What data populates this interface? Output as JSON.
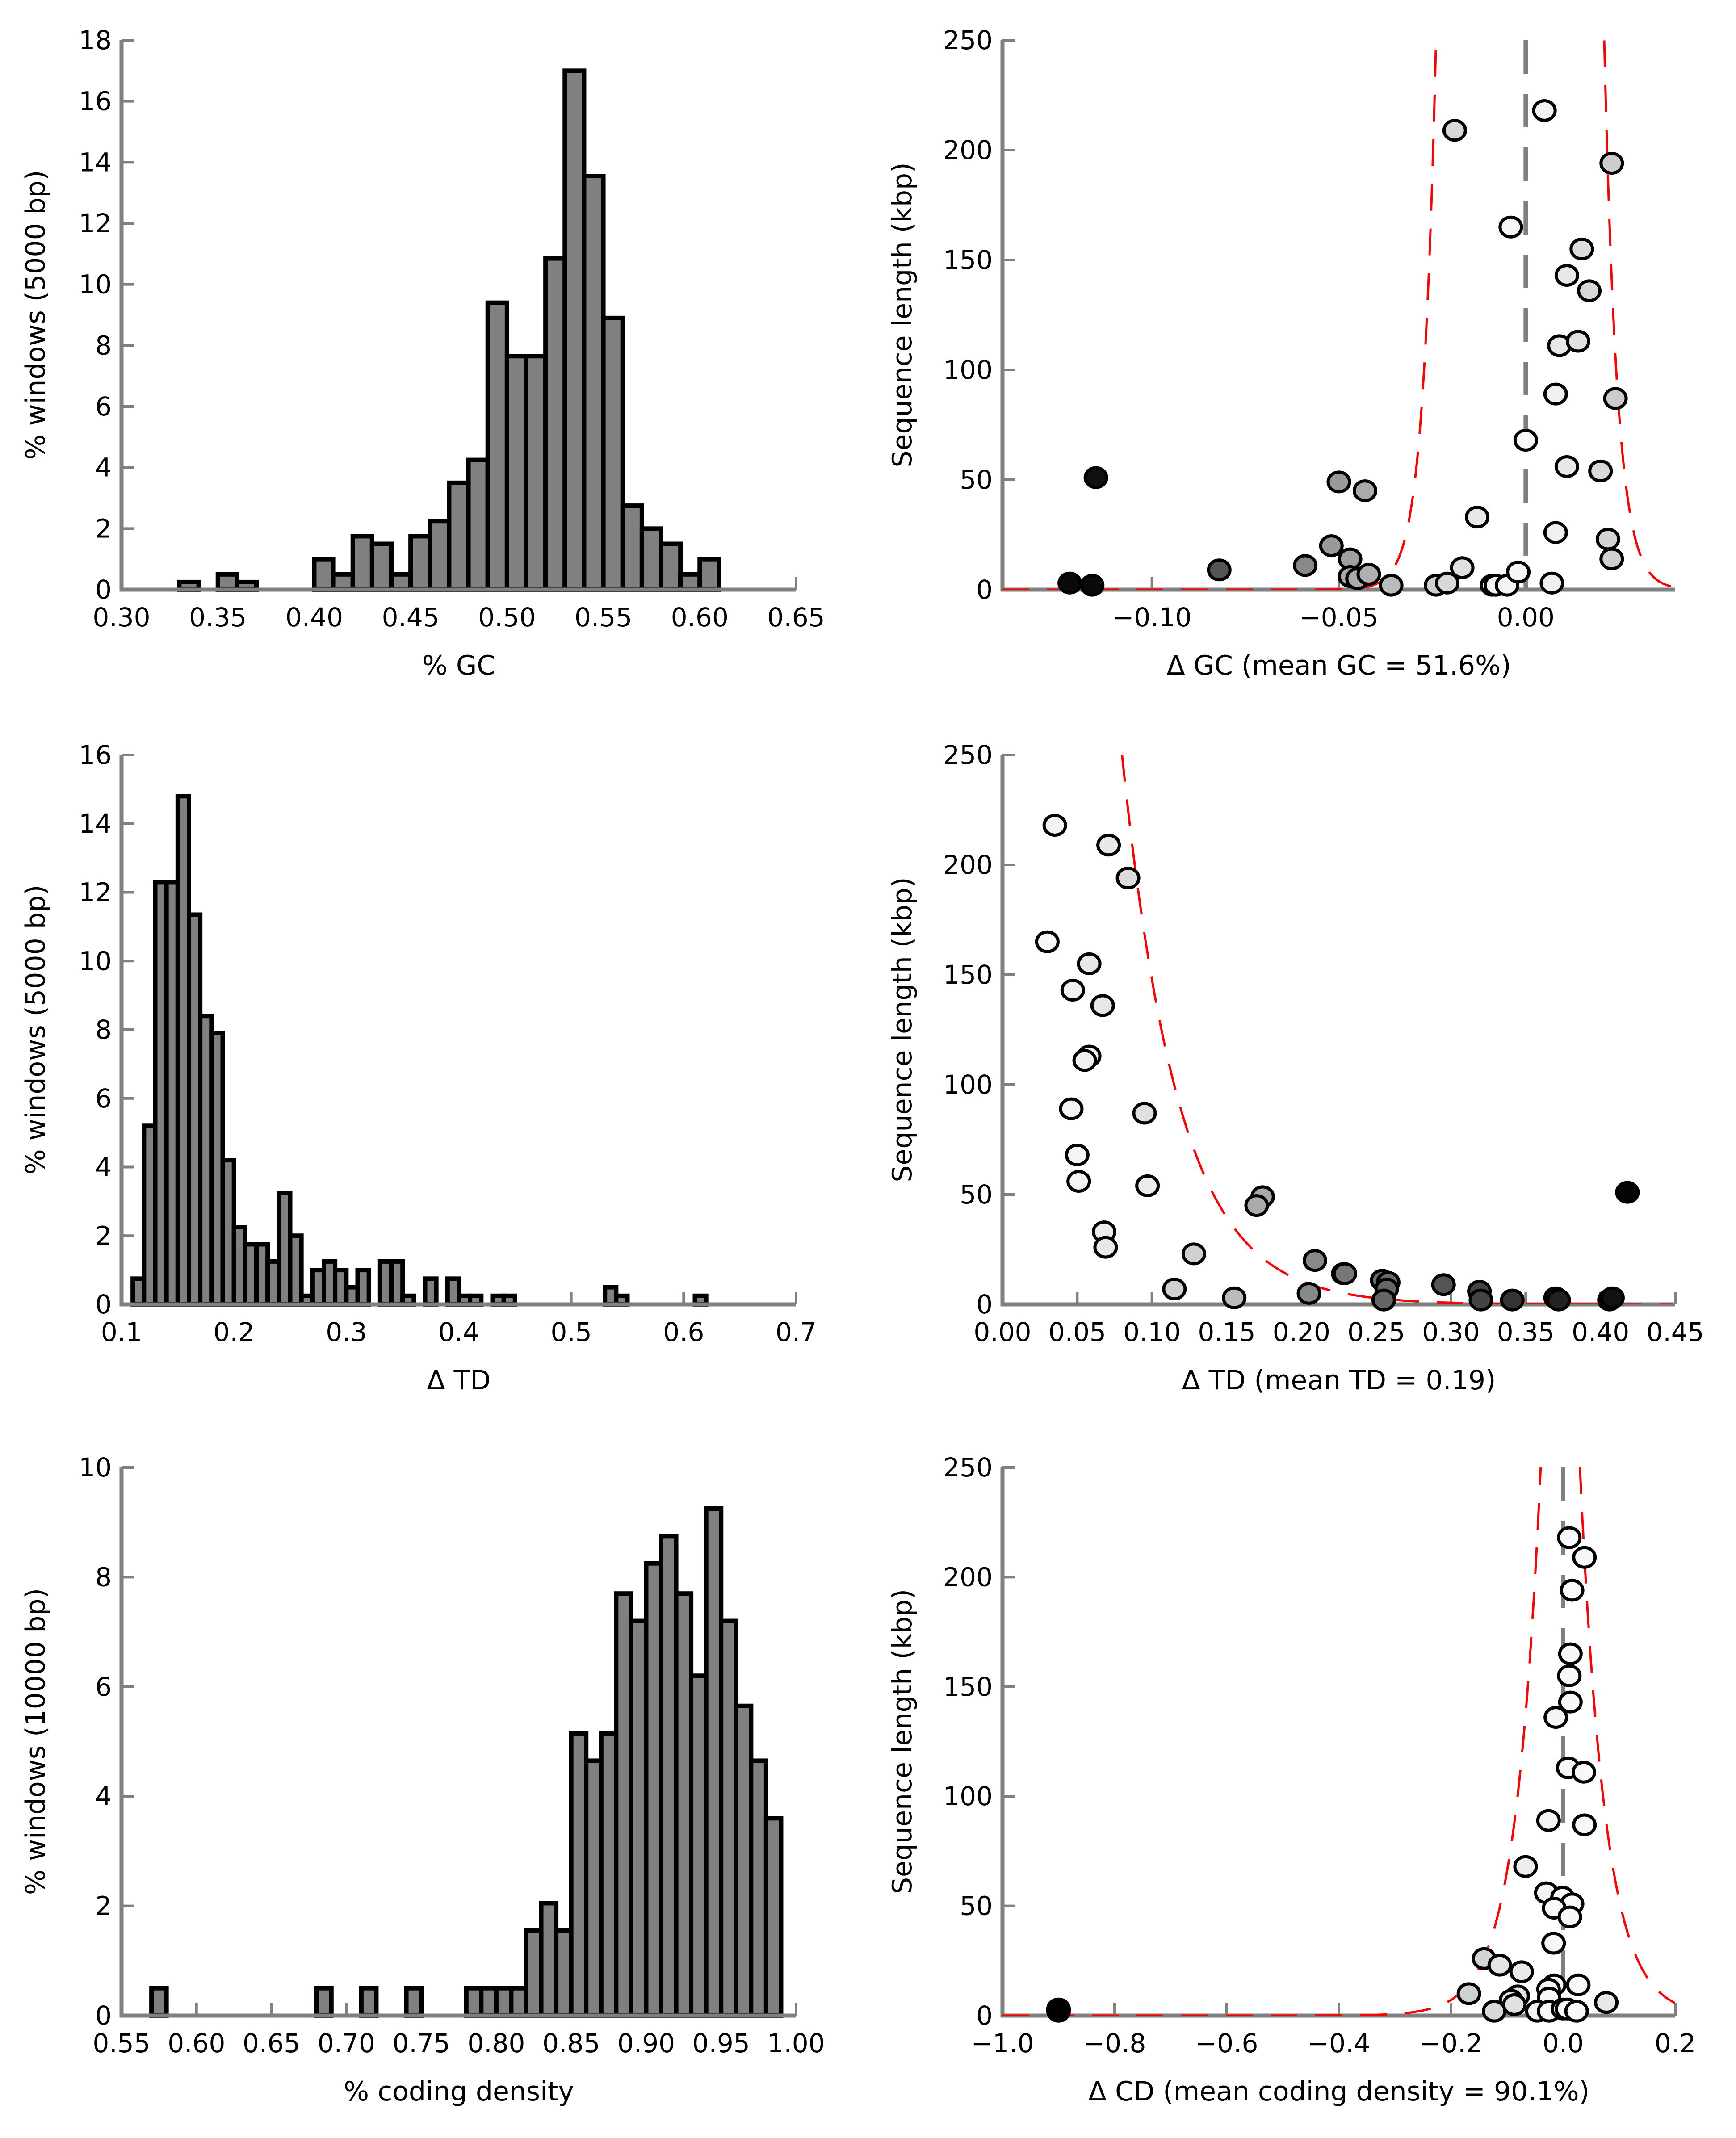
{
  "chart_data": [
    {
      "id": "gc-hist",
      "type": "bar",
      "title": "",
      "xlabel": "% GC",
      "ylabel": "% windows (5000 bp)",
      "xlim": [
        0.3,
        0.65
      ],
      "ylim": [
        0,
        18
      ],
      "xticks": [
        0.3,
        0.35,
        0.4,
        0.45,
        0.5,
        0.55,
        0.6,
        0.65
      ],
      "xtick_labels": [
        "0.30",
        "0.35",
        "0.40",
        "0.45",
        "0.50",
        "0.55",
        "0.60",
        "0.65"
      ],
      "yticks": [
        0,
        2,
        4,
        6,
        8,
        10,
        12,
        14,
        16,
        18
      ],
      "ytick_labels": [
        "0",
        "2",
        "4",
        "6",
        "8",
        "10",
        "12",
        "14",
        "16",
        "18"
      ],
      "bin_width": 0.01,
      "bins": [
        [
          0.33,
          0.25
        ],
        [
          0.35,
          0.5
        ],
        [
          0.36,
          0.25
        ],
        [
          0.4,
          1.0
        ],
        [
          0.41,
          0.5
        ],
        [
          0.42,
          1.75
        ],
        [
          0.43,
          1.5
        ],
        [
          0.44,
          0.5
        ],
        [
          0.45,
          1.75
        ],
        [
          0.46,
          2.25
        ],
        [
          0.47,
          3.5
        ],
        [
          0.48,
          4.25
        ],
        [
          0.49,
          9.4
        ],
        [
          0.5,
          7.65
        ],
        [
          0.51,
          7.65
        ],
        [
          0.52,
          10.85
        ],
        [
          0.53,
          17.0
        ],
        [
          0.54,
          13.55
        ],
        [
          0.55,
          8.9
        ],
        [
          0.56,
          2.75
        ],
        [
          0.57,
          2.0
        ],
        [
          0.58,
          1.5
        ],
        [
          0.59,
          0.5
        ],
        [
          0.6,
          1.0
        ]
      ],
      "grid": false
    },
    {
      "id": "gc-scatter",
      "type": "scatter",
      "title": "",
      "xlabel": "Δ GC (mean GC = 51.6%)",
      "ylabel": "Sequence length (kbp)",
      "xlim": [
        -0.14,
        0.04
      ],
      "ylim": [
        0,
        250
      ],
      "xticks": [
        -0.1,
        -0.05,
        0.0
      ],
      "xtick_labels": [
        "−0.10",
        "−0.05",
        "0.00"
      ],
      "yticks": [
        0,
        50,
        100,
        150,
        200,
        250
      ],
      "ytick_labels": [
        "0",
        "50",
        "100",
        "150",
        "200",
        "250"
      ],
      "mean_line_x": 0.0,
      "fit_curve": {
        "left_asymptote": -0.024,
        "right_asymptote": 0.021,
        "scale": 0.0035
      },
      "points": [
        [
          -0.122,
          3,
          "#0a0a0a"
        ],
        [
          -0.116,
          2,
          "#0a0a0a"
        ],
        [
          -0.115,
          51,
          "#111111"
        ],
        [
          -0.082,
          9,
          "#555555"
        ],
        [
          -0.059,
          11,
          "#888888"
        ],
        [
          -0.05,
          49,
          "#999999"
        ],
        [
          -0.052,
          20,
          "#999999"
        ],
        [
          -0.047,
          14,
          "#a0a0a0"
        ],
        [
          -0.047,
          6,
          "#a8a8a8"
        ],
        [
          -0.043,
          45,
          "#aaaaaa"
        ],
        [
          -0.045,
          5,
          "#aaaaaa"
        ],
        [
          -0.042,
          7,
          "#b0b0b0"
        ],
        [
          -0.036,
          2,
          "#bbbbbb"
        ],
        [
          -0.024,
          2,
          "#d0d0d0"
        ],
        [
          -0.021,
          3,
          "#d8d8d8"
        ],
        [
          -0.019,
          209,
          "#d8d8d8"
        ],
        [
          -0.017,
          10,
          "#e0e0e0"
        ],
        [
          -0.013,
          33,
          "#e8e8e8"
        ],
        [
          -0.009,
          2,
          "#eeeeee"
        ],
        [
          -0.008,
          2,
          "#f4f4f4"
        ],
        [
          -0.005,
          2,
          "#f4f4f4"
        ],
        [
          -0.004,
          165,
          "#f6f6f6"
        ],
        [
          -0.002,
          8,
          "#f8f8f8"
        ],
        [
          0.0,
          68,
          "#fafafa"
        ],
        [
          0.005,
          218,
          "#f4f4f4"
        ],
        [
          0.007,
          3,
          "#f0f0f0"
        ],
        [
          0.008,
          26,
          "#f0f0f0"
        ],
        [
          0.008,
          89,
          "#f0f0f0"
        ],
        [
          0.009,
          111,
          "#e8e8e8"
        ],
        [
          0.011,
          56,
          "#e8e8e8"
        ],
        [
          0.011,
          143,
          "#e8e8e8"
        ],
        [
          0.014,
          113,
          "#e0e0e0"
        ],
        [
          0.015,
          155,
          "#dcdcdc"
        ],
        [
          0.017,
          136,
          "#d8d8d8"
        ],
        [
          0.02,
          54,
          "#d8d8d8"
        ],
        [
          0.022,
          23,
          "#d4d4d4"
        ],
        [
          0.023,
          14,
          "#d0d0d0"
        ],
        [
          0.023,
          194,
          "#cccccc"
        ],
        [
          0.024,
          87,
          "#cccccc"
        ]
      ],
      "grid": false
    },
    {
      "id": "td-hist",
      "type": "bar",
      "title": "",
      "xlabel": "Δ TD",
      "ylabel": "% windows (5000 bp)",
      "xlim": [
        0.1,
        0.7
      ],
      "ylim": [
        0,
        16
      ],
      "xticks": [
        0.1,
        0.2,
        0.3,
        0.4,
        0.5,
        0.6,
        0.7
      ],
      "xtick_labels": [
        "0.1",
        "0.2",
        "0.3",
        "0.4",
        "0.5",
        "0.6",
        "0.7"
      ],
      "yticks": [
        0,
        2,
        4,
        6,
        8,
        10,
        12,
        14,
        16
      ],
      "ytick_labels": [
        "0",
        "2",
        "4",
        "6",
        "8",
        "10",
        "12",
        "14",
        "16"
      ],
      "bin_width": 0.01,
      "bins": [
        [
          0.11,
          0.75
        ],
        [
          0.12,
          5.2
        ],
        [
          0.13,
          12.3
        ],
        [
          0.14,
          12.3
        ],
        [
          0.15,
          14.8
        ],
        [
          0.16,
          11.35
        ],
        [
          0.17,
          8.4
        ],
        [
          0.18,
          7.9
        ],
        [
          0.19,
          4.2
        ],
        [
          0.2,
          2.25
        ],
        [
          0.21,
          1.75
        ],
        [
          0.22,
          1.75
        ],
        [
          0.23,
          1.25
        ],
        [
          0.24,
          3.25
        ],
        [
          0.25,
          2.0
        ],
        [
          0.26,
          0.25
        ],
        [
          0.27,
          1.0
        ],
        [
          0.28,
          1.25
        ],
        [
          0.29,
          1.0
        ],
        [
          0.3,
          0.5
        ],
        [
          0.31,
          1.0
        ],
        [
          0.33,
          1.25
        ],
        [
          0.34,
          1.25
        ],
        [
          0.35,
          0.25
        ],
        [
          0.37,
          0.75
        ],
        [
          0.39,
          0.75
        ],
        [
          0.4,
          0.25
        ],
        [
          0.41,
          0.25
        ],
        [
          0.43,
          0.25
        ],
        [
          0.44,
          0.25
        ],
        [
          0.53,
          0.5
        ],
        [
          0.54,
          0.25
        ],
        [
          0.61,
          0.25
        ]
      ],
      "grid": false
    },
    {
      "id": "td-scatter",
      "type": "scatter",
      "title": "",
      "xlabel": "Δ TD (mean TD = 0.19)",
      "ylabel": "Sequence length (kbp)",
      "xlim": [
        0.0,
        0.45
      ],
      "ylim": [
        0,
        250
      ],
      "xticks": [
        0.0,
        0.05,
        0.1,
        0.15,
        0.2,
        0.25,
        0.3,
        0.35,
        0.4,
        0.45
      ],
      "xtick_labels": [
        "0.00",
        "0.05",
        "0.10",
        "0.15",
        "0.20",
        "0.25",
        "0.30",
        "0.35",
        "0.40",
        "0.45"
      ],
      "yticks": [
        0,
        50,
        100,
        150,
        200,
        250
      ],
      "ytick_labels": [
        "0",
        "50",
        "100",
        "150",
        "200",
        "250"
      ],
      "fit_curve": {
        "asymptote": 0.045,
        "scale": 0.038,
        "amp": 250
      },
      "points": [
        [
          0.035,
          218,
          "#f4f4f4"
        ],
        [
          0.071,
          209,
          "#e8e8e8"
        ],
        [
          0.084,
          194,
          "#dcdcdc"
        ],
        [
          0.03,
          165,
          "#f8f8f8"
        ],
        [
          0.058,
          155,
          "#e8e8e8"
        ],
        [
          0.047,
          143,
          "#f0f0f0"
        ],
        [
          0.067,
          136,
          "#e8e8e8"
        ],
        [
          0.058,
          113,
          "#f0f0f0"
        ],
        [
          0.055,
          111,
          "#f0f0f0"
        ],
        [
          0.046,
          89,
          "#f4f4f4"
        ],
        [
          0.095,
          87,
          "#e0e0e0"
        ],
        [
          0.05,
          68,
          "#f4f4f4"
        ],
        [
          0.051,
          56,
          "#f4f4f4"
        ],
        [
          0.097,
          54,
          "#ececec"
        ],
        [
          0.068,
          33,
          "#ececec"
        ],
        [
          0.069,
          26,
          "#e8e8e8"
        ],
        [
          0.128,
          23,
          "#d0d0d0"
        ],
        [
          0.115,
          7,
          "#d0d0d0"
        ],
        [
          0.155,
          3,
          "#bbbbbb"
        ],
        [
          0.174,
          49,
          "#aaaaaa"
        ],
        [
          0.17,
          45,
          "#aaaaaa"
        ],
        [
          0.209,
          20,
          "#888888"
        ],
        [
          0.205,
          5,
          "#888888"
        ],
        [
          0.228,
          14,
          "#777777"
        ],
        [
          0.229,
          14,
          "#777777"
        ],
        [
          0.254,
          11,
          "#6a6a6a"
        ],
        [
          0.258,
          10,
          "#6a6a6a"
        ],
        [
          0.257,
          7,
          "#666666"
        ],
        [
          0.255,
          2,
          "#666666"
        ],
        [
          0.295,
          9,
          "#555555"
        ],
        [
          0.319,
          6,
          "#444444"
        ],
        [
          0.32,
          2,
          "#444444"
        ],
        [
          0.341,
          2,
          "#333333"
        ],
        [
          0.37,
          3,
          "#222222"
        ],
        [
          0.372,
          2,
          "#222222"
        ],
        [
          0.406,
          2,
          "#111111"
        ],
        [
          0.408,
          3,
          "#111111"
        ],
        [
          0.418,
          51,
          "#050505"
        ]
      ],
      "grid": false
    },
    {
      "id": "cd-hist",
      "type": "bar",
      "title": "",
      "xlabel": "% coding density",
      "ylabel": "% windows (10000 bp)",
      "xlim": [
        0.55,
        1.0
      ],
      "ylim": [
        0,
        10
      ],
      "xticks": [
        0.55,
        0.6,
        0.65,
        0.7,
        0.75,
        0.8,
        0.85,
        0.9,
        0.95,
        1.0
      ],
      "xtick_labels": [
        "0.55",
        "0.60",
        "0.65",
        "0.70",
        "0.75",
        "0.80",
        "0.85",
        "0.90",
        "0.95",
        "1.00"
      ],
      "yticks": [
        0,
        2,
        4,
        6,
        8,
        10
      ],
      "ytick_labels": [
        "0",
        "2",
        "4",
        "6",
        "8",
        "10"
      ],
      "bin_width": 0.01,
      "bins": [
        [
          0.57,
          0.5
        ],
        [
          0.68,
          0.5
        ],
        [
          0.71,
          0.5
        ],
        [
          0.74,
          0.5
        ],
        [
          0.78,
          0.5
        ],
        [
          0.79,
          0.5
        ],
        [
          0.8,
          0.5
        ],
        [
          0.81,
          0.5
        ],
        [
          0.82,
          1.55
        ],
        [
          0.83,
          2.05
        ],
        [
          0.84,
          1.55
        ],
        [
          0.85,
          5.15
        ],
        [
          0.86,
          4.65
        ],
        [
          0.87,
          5.15
        ],
        [
          0.88,
          7.7
        ],
        [
          0.89,
          7.2
        ],
        [
          0.9,
          8.25
        ],
        [
          0.91,
          8.75
        ],
        [
          0.92,
          7.7
        ],
        [
          0.93,
          6.2
        ],
        [
          0.94,
          9.25
        ],
        [
          0.95,
          7.2
        ],
        [
          0.96,
          5.65
        ],
        [
          0.97,
          4.65
        ],
        [
          0.98,
          3.6
        ]
      ],
      "grid": false
    },
    {
      "id": "cd-scatter",
      "type": "scatter",
      "title": "",
      "xlabel": "Δ CD (mean coding density = 90.1%)",
      "ylabel": "Sequence length (kbp)",
      "xlim": [
        -1.0,
        0.2
      ],
      "ylim": [
        0,
        250
      ],
      "xticks": [
        -1.0,
        -0.8,
        -0.6,
        -0.4,
        -0.2,
        0.0,
        0.2
      ],
      "xtick_labels": [
        "−1.0",
        "−0.8",
        "−0.6",
        "−0.4",
        "−0.2",
        "0.0",
        "0.2"
      ],
      "yticks": [
        0,
        50,
        100,
        150,
        200,
        250
      ],
      "ytick_labels": [
        "0",
        "50",
        "100",
        "150",
        "200",
        "250"
      ],
      "mean_line_x": 0.0,
      "fit_curve": {
        "left_asymptote": -0.04,
        "right_asymptote": 0.03,
        "scale": 0.045
      },
      "points": [
        [
          -0.9,
          3,
          "#000000"
        ],
        [
          -0.9,
          2,
          "#000000"
        ],
        [
          0.011,
          218,
          "#f8f8f8"
        ],
        [
          0.038,
          209,
          "#f8f8f8"
        ],
        [
          0.016,
          194,
          "#f8f8f8"
        ],
        [
          0.013,
          165,
          "#f8f8f8"
        ],
        [
          0.011,
          155,
          "#f8f8f8"
        ],
        [
          0.013,
          143,
          "#f8f8f8"
        ],
        [
          -0.013,
          136,
          "#f4f4f4"
        ],
        [
          0.009,
          113,
          "#f8f8f8"
        ],
        [
          0.037,
          111,
          "#f8f8f8"
        ],
        [
          -0.026,
          89,
          "#f4f4f4"
        ],
        [
          0.038,
          87,
          "#f8f8f8"
        ],
        [
          -0.067,
          68,
          "#eeeeee"
        ],
        [
          -0.03,
          56,
          "#f4f4f4"
        ],
        [
          -0.001,
          54,
          "#fafafa"
        ],
        [
          0.016,
          51,
          "#f8f8f8"
        ],
        [
          -0.016,
          49,
          "#f8f8f8"
        ],
        [
          0.012,
          45,
          "#f8f8f8"
        ],
        [
          -0.017,
          33,
          "#f8f8f8"
        ],
        [
          -0.141,
          26,
          "#d4d4d4"
        ],
        [
          -0.113,
          23,
          "#e4e4e4"
        ],
        [
          -0.074,
          20,
          "#eaeaea"
        ],
        [
          -0.016,
          14,
          "#f8f8f8"
        ],
        [
          0.027,
          14,
          "#f8f8f8"
        ],
        [
          -0.026,
          12,
          "#f4f4f4"
        ],
        [
          -0.168,
          10,
          "#d0d0d0"
        ],
        [
          -0.081,
          9,
          "#e4e4e4"
        ],
        [
          -0.093,
          7,
          "#e0e0e0"
        ],
        [
          -0.025,
          8,
          "#f8f8f8"
        ],
        [
          0.077,
          6,
          "#e8e8e8"
        ],
        [
          -0.087,
          5,
          "#e0e0e0"
        ],
        [
          -0.123,
          2,
          "#d8d8d8"
        ],
        [
          -0.046,
          2,
          "#f0f0f0"
        ],
        [
          -0.025,
          2,
          "#f8f8f8"
        ],
        [
          0.0,
          3,
          "#fafafa"
        ],
        [
          0.007,
          3,
          "#fafafa"
        ],
        [
          0.024,
          2,
          "#f8f8f8"
        ]
      ],
      "grid": false
    }
  ]
}
